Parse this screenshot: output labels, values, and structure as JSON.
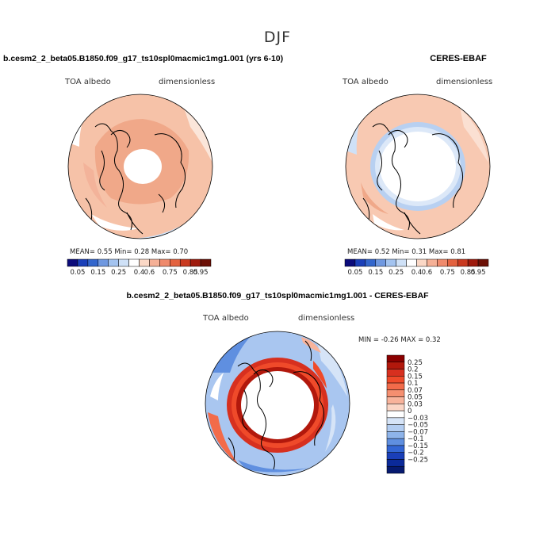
{
  "main_title": "DJF",
  "panels": [
    {
      "title": "b.cesm2_2_beta05.B1850.f09_g17_ts10spl0macmic1mg1.001 (yrs 6-10)",
      "left_label": "TOA albedo",
      "right_label": "dimensionless",
      "stats": "MEAN=    0.55   Min=    0.28   Max=    0.70"
    },
    {
      "title": "CERES-EBAF",
      "left_label": "TOA albedo",
      "right_label": "dimensionless",
      "stats": "MEAN=    0.52   Min=    0.31   Max=    0.81"
    },
    {
      "title": "b.cesm2_2_beta05.B1850.f09_g17_ts10spl0macmic1mg1.001 - CERES-EBAF",
      "left_label": "TOA albedo",
      "right_label": "dimensionless",
      "stats": "MIN =   -0.26  MAX =    0.32"
    }
  ],
  "colorbar_h": {
    "colors": [
      "#0b0b7a",
      "#1a3fb8",
      "#3366cc",
      "#6f98e0",
      "#a3c3ef",
      "#cfe1f7",
      "#ffffff",
      "#fbd8c6",
      "#f5b096",
      "#ef8a6c",
      "#e3623f",
      "#c93a20",
      "#9e1a0c",
      "#6b0f05"
    ],
    "labels": [
      "0.05",
      "0.15",
      "0.25",
      "0.4",
      "0.6",
      "0.75",
      "0.85",
      "0.95"
    ]
  },
  "colorbar_v": {
    "colors": [
      "#8b0000",
      "#b2180c",
      "#d7301f",
      "#ef4a2a",
      "#f26b4a",
      "#f58f70",
      "#f8b39b",
      "#fbd6c6",
      "#ffffff",
      "#d6e4f7",
      "#b3cdf1",
      "#8eb4ea",
      "#5f8fe0",
      "#3366d4",
      "#1a3fb8",
      "#0b2a9a",
      "#061a70"
    ],
    "labels": [
      "0.25",
      "0.2",
      "0.15",
      "0.1",
      "0.07",
      "0.05",
      "0.03",
      "0",
      "−0.03",
      "−0.05",
      "−0.07",
      "−0.1",
      "−0.15",
      "−0.2",
      "−0.25"
    ]
  }
}
